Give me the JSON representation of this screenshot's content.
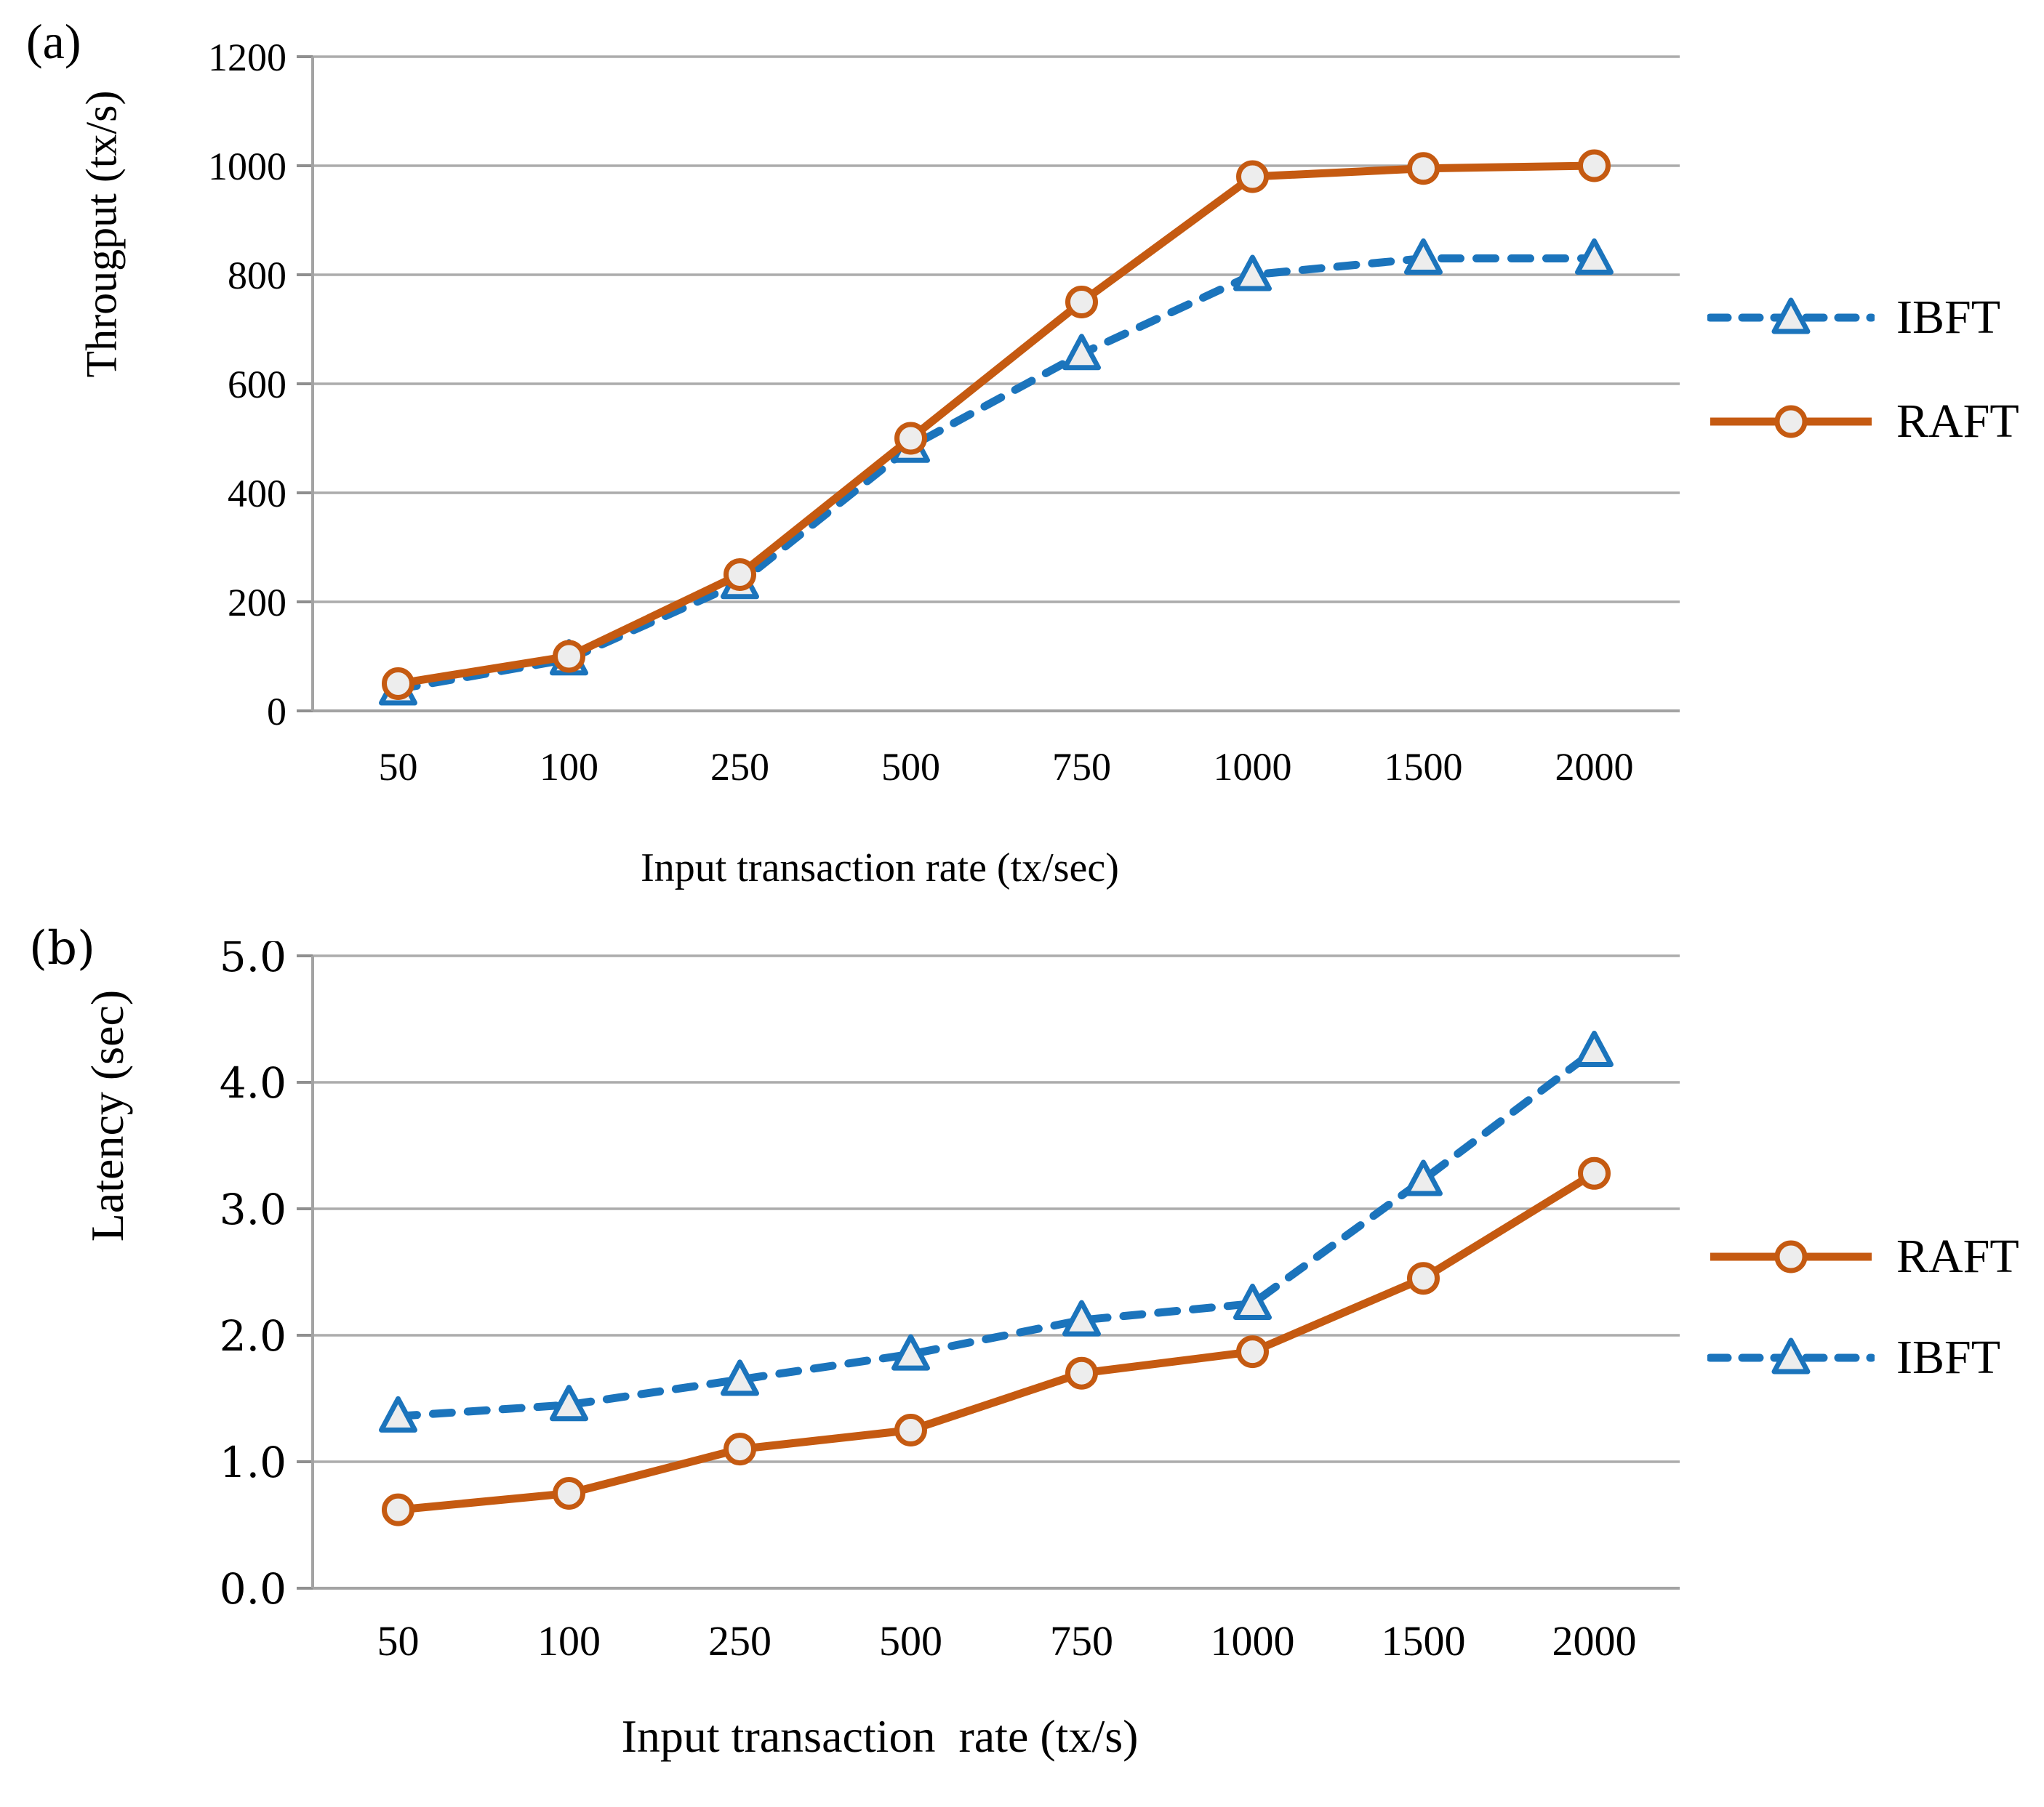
{
  "figure": {
    "panel_labels": [
      "(a)",
      "(b)"
    ],
    "background": "#ffffff"
  },
  "colors": {
    "ibft_blue": "#1B74BC",
    "raft_orange": "#C55A11",
    "marker_fill": "#EDEDED",
    "gridline_gray": "#ACACAC",
    "axis_gray": "#A3A3A3",
    "text_black": "#000000"
  },
  "chart_data": [
    {
      "type": "line",
      "panel": "a",
      "title": "",
      "ylabel": "Througput (tx/s)",
      "xlabel": "Input transaction rate (tx/sec)",
      "categories": [
        "50",
        "100",
        "250",
        "500",
        "750",
        "1000",
        "1500",
        "2000"
      ],
      "ylim": [
        0,
        1200
      ],
      "yticks": [
        "1200",
        "1000",
        "800",
        "600",
        "400",
        "200",
        "0"
      ],
      "grid": true,
      "legend_position": "right",
      "legend": [
        "IBFT",
        "RAFT"
      ],
      "series": [
        {
          "name": "IBFT",
          "marker": "triangle",
          "dash": true,
          "color": "#1B74BC",
          "values": [
            40,
            95,
            235,
            485,
            655,
            800,
            830,
            830
          ]
        },
        {
          "name": "RAFT",
          "marker": "circle",
          "dash": false,
          "color": "#C55A11",
          "values": [
            50,
            100,
            250,
            500,
            750,
            980,
            995,
            1000
          ]
        }
      ]
    },
    {
      "type": "line",
      "panel": "b",
      "title": "",
      "ylabel": "Latency (sec)",
      "xlabel": "Input transaction  rate (tx/s)",
      "categories": [
        "50",
        "100",
        "250",
        "500",
        "750",
        "1000",
        "1500",
        "2000"
      ],
      "ylim": [
        0,
        5
      ],
      "yticks": [
        "5.0",
        "4.0",
        "3.0",
        "2.0",
        "1.0",
        "0.0"
      ],
      "grid": true,
      "legend_position": "right",
      "legend": [
        "RAFT",
        "IBFT"
      ],
      "series": [
        {
          "name": "IBFT",
          "marker": "triangle",
          "dash": true,
          "color": "#1B74BC",
          "values": [
            1.36,
            1.45,
            1.65,
            1.85,
            2.12,
            2.25,
            3.23,
            4.25
          ]
        },
        {
          "name": "RAFT",
          "marker": "circle",
          "dash": false,
          "color": "#C55A11",
          "values": [
            0.62,
            0.75,
            1.1,
            1.25,
            1.7,
            1.87,
            2.45,
            3.28
          ]
        }
      ]
    }
  ]
}
